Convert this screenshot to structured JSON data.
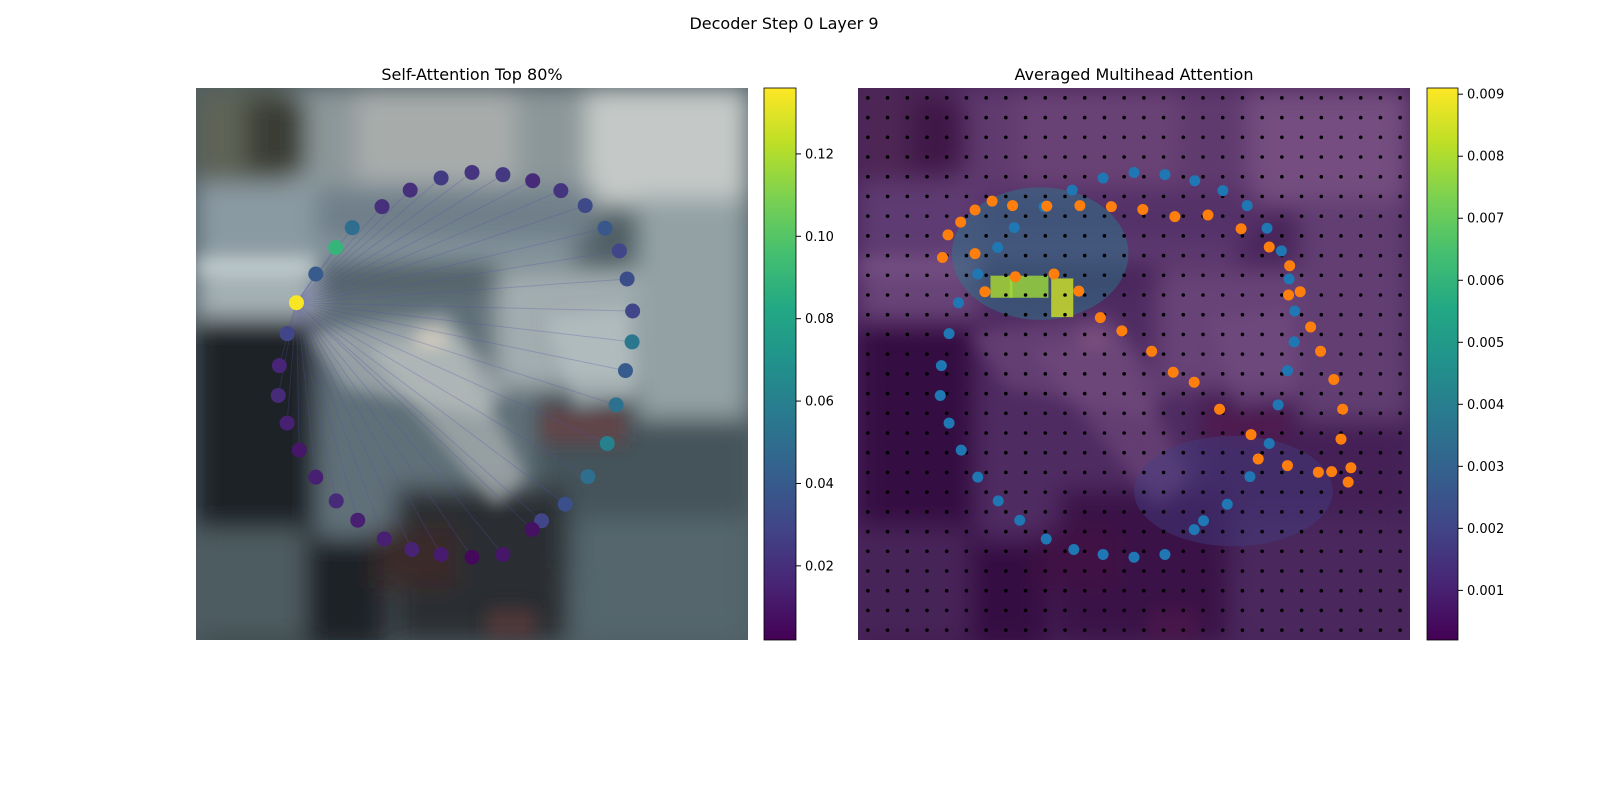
{
  "figure_title": "Decoder Step 0 Layer 9",
  "colors": {
    "blue_points": "#1f77b4",
    "orange_points": "#ff7f0e",
    "grid_points": "#000000",
    "colormap": "viridis"
  },
  "chart_data": [
    {
      "type": "scatter",
      "title": "Self-Attention Top 80%",
      "background": "photo: blurred street scene with parked cars",
      "xlim": [
        0,
        1
      ],
      "ylim": [
        0,
        1
      ],
      "colorbar": {
        "range": [
          0.002,
          0.136
        ],
        "ticks": [
          0.02,
          0.04,
          0.06,
          0.08,
          0.1,
          0.12
        ],
        "tick_labels": [
          "0.02",
          "0.04",
          "0.06",
          "0.08",
          "0.10",
          "0.12"
        ]
      },
      "points": {
        "x": [
          0.5,
          0.556,
          0.61,
          0.661,
          0.705,
          0.741,
          0.767,
          0.781,
          0.791,
          0.79,
          0.778,
          0.761,
          0.745,
          0.71,
          0.669,
          0.626,
          0.609,
          0.556,
          0.5,
          0.444,
          0.391,
          0.341,
          0.293,
          0.254,
          0.217,
          0.187,
          0.165,
          0.149,
          0.151,
          0.165,
          0.182,
          0.217,
          0.253,
          0.283,
          0.337,
          0.388,
          0.444
        ],
        "y": [
          0.847,
          0.843,
          0.832,
          0.814,
          0.787,
          0.746,
          0.705,
          0.654,
          0.596,
          0.54,
          0.488,
          0.426,
          0.356,
          0.296,
          0.246,
          0.216,
          0.2,
          0.155,
          0.15,
          0.155,
          0.164,
          0.183,
          0.217,
          0.252,
          0.295,
          0.344,
          0.393,
          0.443,
          0.497,
          0.555,
          0.611,
          0.663,
          0.711,
          0.747,
          0.785,
          0.815,
          0.837
        ],
        "attention": [
          0.022,
          0.024,
          0.018,
          0.022,
          0.032,
          0.038,
          0.03,
          0.034,
          0.03,
          0.055,
          0.04,
          0.052,
          0.06,
          0.05,
          0.035,
          0.03,
          0.008,
          0.01,
          0.005,
          0.012,
          0.015,
          0.014,
          0.014,
          0.018,
          0.014,
          0.01,
          0.014,
          0.018,
          0.016,
          0.03,
          0.135,
          0.04,
          0.09,
          0.05,
          0.02,
          0.02,
          0.025
        ]
      }
    },
    {
      "type": "heatmap",
      "title": "Averaged Multihead Attention",
      "background": "photo: blurred street scene with parked cars",
      "grid_size": [
        28,
        28
      ],
      "xlim": [
        0,
        1
      ],
      "ylim": [
        0,
        1
      ],
      "colorbar": {
        "range": [
          0.0002,
          0.0091
        ],
        "ticks": [
          0.001,
          0.002,
          0.003,
          0.004,
          0.005,
          0.006,
          0.007,
          0.008,
          0.009
        ],
        "tick_labels": [
          "0.001",
          "0.002",
          "0.003",
          "0.004",
          "0.005",
          "0.006",
          "0.007",
          "0.008",
          "0.009"
        ]
      },
      "hotspots": [
        {
          "x": 0.33,
          "y": 0.7,
          "rx": 0.16,
          "ry": 0.12,
          "value": 0.004
        },
        {
          "x": 0.26,
          "y": 0.64,
          "w": 0.04,
          "h": 0.04,
          "value": 0.008
        },
        {
          "x": 0.31,
          "y": 0.64,
          "w": 0.07,
          "h": 0.04,
          "value": 0.0078
        },
        {
          "x": 0.37,
          "y": 0.62,
          "w": 0.04,
          "h": 0.07,
          "value": 0.0085
        },
        {
          "x": 0.68,
          "y": 0.27,
          "rx": 0.18,
          "ry": 0.1,
          "value": 0.0018
        }
      ],
      "series": [
        {
          "color_key": "blue_points",
          "x": [
            0.5,
            0.556,
            0.61,
            0.661,
            0.705,
            0.741,
            0.767,
            0.781,
            0.791,
            0.79,
            0.778,
            0.761,
            0.745,
            0.71,
            0.669,
            0.626,
            0.609,
            0.556,
            0.5,
            0.444,
            0.391,
            0.341,
            0.293,
            0.254,
            0.217,
            0.187,
            0.165,
            0.149,
            0.151,
            0.165,
            0.182,
            0.217,
            0.253,
            0.283,
            0.337,
            0.388,
            0.444
          ],
          "y": [
            0.847,
            0.843,
            0.832,
            0.814,
            0.787,
            0.746,
            0.705,
            0.654,
            0.596,
            0.54,
            0.488,
            0.426,
            0.356,
            0.296,
            0.246,
            0.216,
            0.2,
            0.155,
            0.15,
            0.155,
            0.164,
            0.183,
            0.217,
            0.252,
            0.295,
            0.344,
            0.393,
            0.443,
            0.497,
            0.555,
            0.611,
            0.663,
            0.711,
            0.747,
            0.785,
            0.815,
            0.837
          ]
        },
        {
          "color_key": "orange_points",
          "x": [
            0.153,
            0.163,
            0.186,
            0.212,
            0.243,
            0.28,
            0.342,
            0.402,
            0.459,
            0.516,
            0.574,
            0.634,
            0.694,
            0.745,
            0.782,
            0.801,
            0.78,
            0.82,
            0.838,
            0.862,
            0.878,
            0.875,
            0.858,
            0.893,
            0.888,
            0.834,
            0.778,
            0.725,
            0.712,
            0.655,
            0.609,
            0.571,
            0.532,
            0.478,
            0.439,
            0.4,
            0.355,
            0.285,
            0.23,
            0.212
          ],
          "y": [
            0.693,
            0.734,
            0.757,
            0.779,
            0.795,
            0.787,
            0.786,
            0.787,
            0.785,
            0.78,
            0.767,
            0.77,
            0.745,
            0.712,
            0.678,
            0.631,
            0.625,
            0.567,
            0.523,
            0.472,
            0.418,
            0.364,
            0.305,
            0.312,
            0.286,
            0.304,
            0.316,
            0.328,
            0.372,
            0.418,
            0.467,
            0.485,
            0.523,
            0.56,
            0.584,
            0.632,
            0.663,
            0.658,
            0.631,
            0.7
          ]
        }
      ]
    }
  ]
}
